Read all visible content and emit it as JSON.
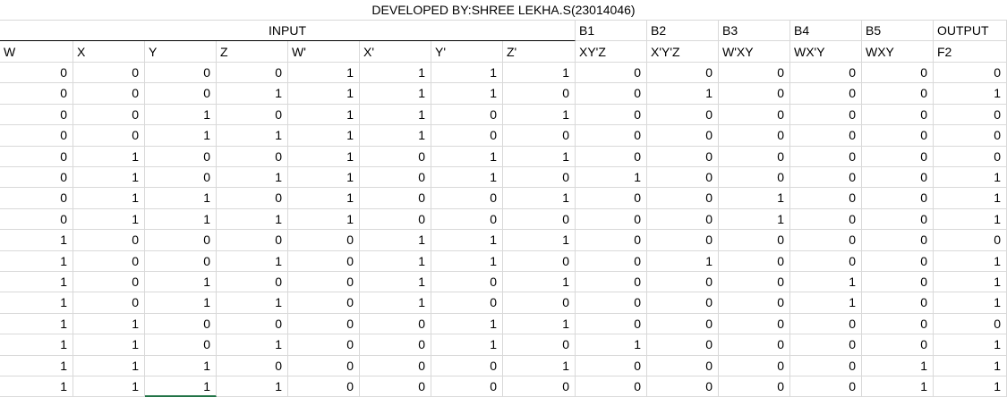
{
  "title": "DEVELOPED BY:SHREE LEKHA.S(23014046)",
  "group_row": {
    "input": "INPUT",
    "b1": "B1",
    "b2": "B2",
    "b3": "B3",
    "b4": "B4",
    "b5": "B5",
    "output": "OUTPUT"
  },
  "headers": [
    "W",
    "X",
    "Y",
    "Z",
    "W'",
    "X'",
    "Y'",
    "Z'",
    "XY'Z",
    "X'Y'Z",
    "W'XY",
    "WX'Y",
    "WXY",
    "F2"
  ],
  "rows": [
    [
      0,
      0,
      0,
      0,
      1,
      1,
      1,
      1,
      0,
      0,
      0,
      0,
      0,
      0
    ],
    [
      0,
      0,
      0,
      1,
      1,
      1,
      1,
      0,
      0,
      1,
      0,
      0,
      0,
      1
    ],
    [
      0,
      0,
      1,
      0,
      1,
      1,
      0,
      1,
      0,
      0,
      0,
      0,
      0,
      0
    ],
    [
      0,
      0,
      1,
      1,
      1,
      1,
      0,
      0,
      0,
      0,
      0,
      0,
      0,
      0
    ],
    [
      0,
      1,
      0,
      0,
      1,
      0,
      1,
      1,
      0,
      0,
      0,
      0,
      0,
      0
    ],
    [
      0,
      1,
      0,
      1,
      1,
      0,
      1,
      0,
      1,
      0,
      0,
      0,
      0,
      1
    ],
    [
      0,
      1,
      1,
      0,
      1,
      0,
      0,
      1,
      0,
      0,
      1,
      0,
      0,
      1
    ],
    [
      0,
      1,
      1,
      1,
      1,
      0,
      0,
      0,
      0,
      0,
      1,
      0,
      0,
      1
    ],
    [
      1,
      0,
      0,
      0,
      0,
      1,
      1,
      1,
      0,
      0,
      0,
      0,
      0,
      0
    ],
    [
      1,
      0,
      0,
      1,
      0,
      1,
      1,
      0,
      0,
      1,
      0,
      0,
      0,
      1
    ],
    [
      1,
      0,
      1,
      0,
      0,
      1,
      0,
      1,
      0,
      0,
      0,
      1,
      0,
      1
    ],
    [
      1,
      0,
      1,
      1,
      0,
      1,
      0,
      0,
      0,
      0,
      0,
      1,
      0,
      1
    ],
    [
      1,
      1,
      0,
      0,
      0,
      0,
      1,
      1,
      0,
      0,
      0,
      0,
      0,
      0
    ],
    [
      1,
      1,
      0,
      1,
      0,
      0,
      1,
      0,
      1,
      0,
      0,
      0,
      0,
      1
    ],
    [
      1,
      1,
      1,
      0,
      0,
      0,
      0,
      1,
      0,
      0,
      0,
      0,
      1,
      1
    ],
    [
      1,
      1,
      1,
      1,
      0,
      0,
      0,
      0,
      0,
      0,
      0,
      0,
      1,
      1
    ]
  ]
}
